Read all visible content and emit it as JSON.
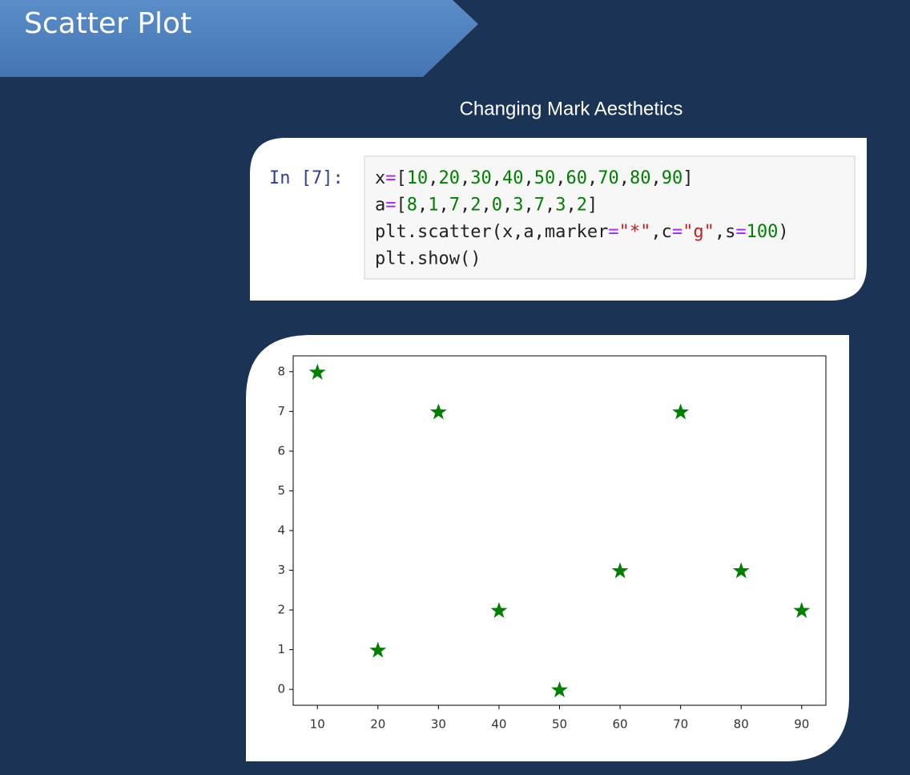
{
  "title": "Scatter Plot",
  "subtitle": "Changing Mark Aesthetics",
  "code": {
    "prompt": "In [7]:",
    "lines": [
      "x=[10,20,30,40,50,60,70,80,90]",
      "a=[8,1,7,2,0,3,7,3,2]",
      "plt.scatter(x,a,marker=\"*\",c=\"g\",s=100)",
      "plt.show()"
    ]
  },
  "chart_data": {
    "type": "scatter",
    "x": [
      10,
      20,
      30,
      40,
      50,
      60,
      70,
      80,
      90
    ],
    "series": [
      {
        "values": [
          8,
          1,
          7,
          2,
          0,
          3,
          7,
          3,
          2
        ],
        "color": "#008000",
        "marker": "*"
      }
    ],
    "xlim": [
      6,
      94
    ],
    "ylim": [
      -0.4,
      8.4
    ],
    "xticks": [
      10,
      20,
      30,
      40,
      50,
      60,
      70,
      80,
      90
    ],
    "yticks": [
      0,
      1,
      2,
      3,
      4,
      5,
      6,
      7,
      8
    ]
  }
}
